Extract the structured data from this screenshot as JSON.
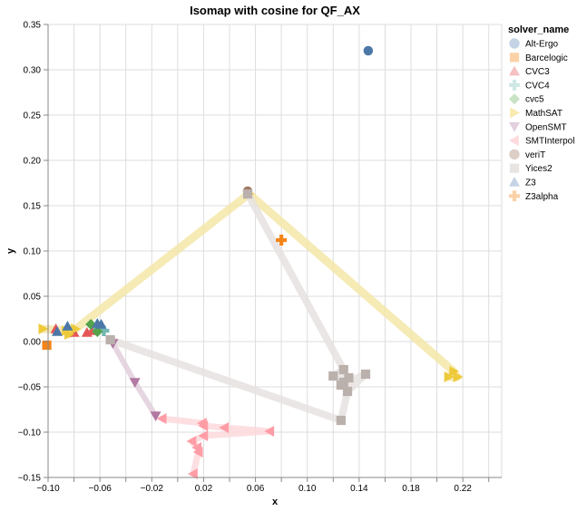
{
  "chart_data": {
    "type": "scatter",
    "title": "Isomap with cosine for QF_AX",
    "xlabel": "x",
    "ylabel": "y",
    "xlim": [
      -0.1,
      0.25
    ],
    "ylim": [
      -0.15,
      0.35
    ],
    "grid": true,
    "x_ticks": [
      "-0.10",
      "-0.06",
      "-0.02",
      "0.02",
      "0.06",
      "0.10",
      "0.14",
      "0.18",
      "0.22"
    ],
    "x_tick_values": [
      -0.1,
      -0.08,
      -0.06,
      -0.04,
      -0.02,
      0.0,
      0.02,
      0.04,
      0.06,
      0.08,
      0.1,
      0.12,
      0.14,
      0.16,
      0.18,
      0.2,
      0.22,
      0.24
    ],
    "x_label_values": [
      -0.1,
      -0.06,
      -0.02,
      0.02,
      0.06,
      0.1,
      0.14,
      0.18,
      0.22
    ],
    "y_ticks": [
      "0.35",
      "0.30",
      "0.25",
      "0.20",
      "0.15",
      "0.10",
      "0.05",
      "0.00",
      "-0.05",
      "-0.10",
      "-0.15"
    ],
    "y_tick_values": [
      0.35,
      0.3,
      0.25,
      0.2,
      0.15,
      0.1,
      0.05,
      0.0,
      -0.05,
      -0.1,
      -0.15
    ],
    "legend": {
      "title": "solver_name",
      "placement": "right"
    },
    "series": [
      {
        "name": "Alt-Ergo",
        "color": "#4c78a8",
        "shape": "circle",
        "path": false,
        "points": [
          [
            0.147,
            0.321
          ]
        ]
      },
      {
        "name": "Barcelogic",
        "color": "#f58518",
        "shape": "square",
        "path": false,
        "points": [
          [
            -0.101,
            -0.004
          ]
        ]
      },
      {
        "name": "CVC3",
        "color": "#e45756",
        "shape": "triangle-up",
        "path": false,
        "points": [
          [
            -0.094,
            0.014
          ],
          [
            -0.08,
            0.01
          ],
          [
            -0.07,
            0.01
          ],
          [
            -0.066,
            0.012
          ]
        ]
      },
      {
        "name": "CVC4",
        "color": "#72b7b2",
        "shape": "cross",
        "path": false,
        "points": [
          [
            -0.057,
            0.012
          ],
          [
            -0.061,
            0.014
          ]
        ]
      },
      {
        "name": "cvc5",
        "color": "#54a24b",
        "shape": "diamond",
        "path": false,
        "points": [
          [
            -0.067,
            0.019
          ],
          [
            -0.062,
            0.011
          ]
        ]
      },
      {
        "name": "MathSAT",
        "color": "#eeca3b",
        "shape": "triangle-right",
        "path": true,
        "path_color": "#f5e6a8",
        "points": [
          [
            -0.104,
            0.014
          ],
          [
            -0.086,
            0.012
          ],
          [
            -0.079,
            0.014
          ],
          [
            -0.084,
            0.008
          ],
          [
            0.055,
            0.163
          ],
          [
            0.213,
            -0.033
          ],
          [
            0.209,
            -0.039
          ],
          [
            0.216,
            -0.039
          ]
        ]
      },
      {
        "name": "OpenSMT",
        "color": "#b279a2",
        "shape": "triangle-down",
        "path": true,
        "path_color": "#e0cfdc",
        "points": [
          [
            -0.05,
            -0.002
          ],
          [
            -0.033,
            -0.045
          ],
          [
            -0.017,
            -0.082
          ]
        ]
      },
      {
        "name": "SMTInterpol",
        "color": "#ff9da6",
        "shape": "triangle-left",
        "path": true,
        "path_color": "#fdd9dd",
        "points": [
          [
            -0.012,
            -0.085
          ],
          [
            0.019,
            -0.09
          ],
          [
            0.02,
            -0.093
          ],
          [
            0.036,
            -0.095
          ],
          [
            0.071,
            -0.099
          ],
          [
            0.02,
            -0.104
          ],
          [
            0.011,
            -0.11
          ],
          [
            0.015,
            -0.117
          ],
          [
            0.016,
            -0.122
          ],
          [
            0.012,
            -0.146
          ]
        ]
      },
      {
        "name": "veriT",
        "color": "#9d755d",
        "shape": "circle",
        "path": false,
        "points": [
          [
            0.054,
            0.166
          ]
        ]
      },
      {
        "name": "Yices2",
        "color": "#bab0ac",
        "shape": "square",
        "path": true,
        "path_color": "#e6e2e0",
        "points": [
          [
            0.054,
            0.163
          ],
          [
            0.128,
            -0.031
          ],
          [
            0.12,
            -0.038
          ],
          [
            0.132,
            -0.04
          ],
          [
            0.128,
            -0.045
          ],
          [
            0.126,
            -0.048
          ],
          [
            0.145,
            -0.036
          ],
          [
            0.131,
            -0.055
          ],
          [
            0.126,
            -0.087
          ],
          [
            -0.052,
            0.002
          ]
        ]
      },
      {
        "name": "Z3",
        "color": "#4c78a8",
        "shape": "triangle-up",
        "path": false,
        "points": [
          [
            -0.093,
            0.011
          ],
          [
            -0.085,
            0.017
          ],
          [
            -0.062,
            0.02
          ],
          [
            -0.059,
            0.019
          ]
        ]
      },
      {
        "name": "Z3alpha",
        "color": "#f58518",
        "shape": "cross",
        "path": false,
        "points": [
          [
            0.08,
            0.112
          ]
        ]
      }
    ],
    "legend_colors": {
      "Alt-Ergo": "#c4d4e6",
      "Barcelogic": "#fbd2a8",
      "CVC3": "#f4c0c0",
      "CVC4": "#cfe8e6",
      "cvc5": "#c8e2c4",
      "MathSAT": "#f8eab0",
      "OpenSMT": "#e2d0de",
      "SMTInterpol": "#fedadd",
      "veriT": "#dccec6",
      "Yices2": "#e8e4e2",
      "Z3": "#c4d4e6",
      "Z3alpha": "#fbd2a8"
    }
  }
}
